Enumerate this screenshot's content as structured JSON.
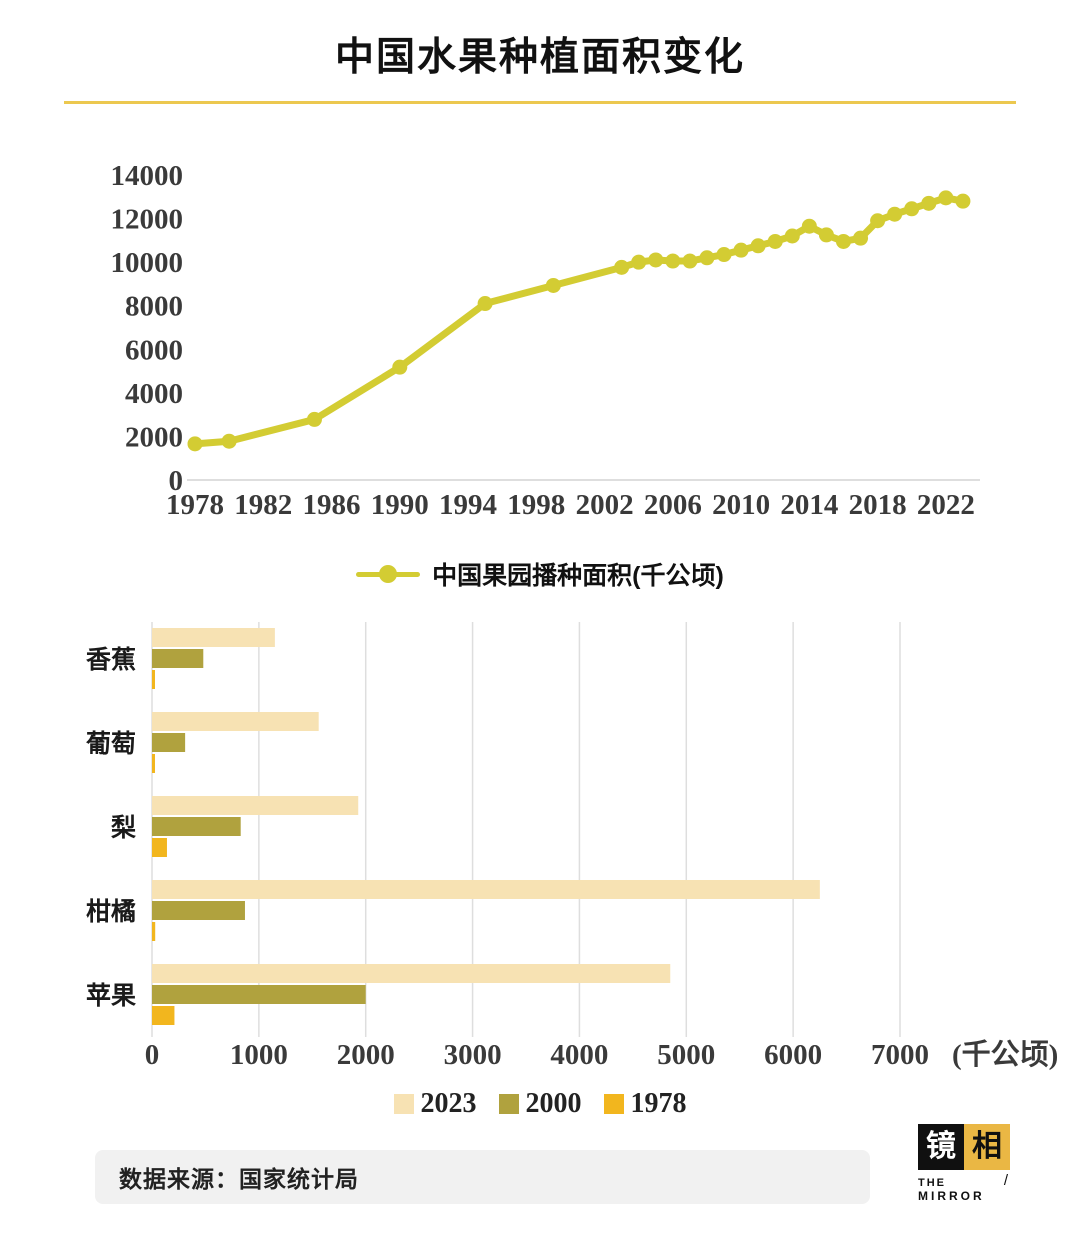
{
  "title": "中国水果种植面积变化",
  "colors": {
    "accent_divider": "#ecc84f",
    "line": "#d3cc33",
    "bar_2023": "#f7e2b3",
    "bar_2000": "#b0a23e",
    "bar_1978": "#f2b61e",
    "grid": "#dedede",
    "axis_text": "#3a3a3a",
    "logo_gold": "#eab744"
  },
  "footer": {
    "source": "数据来源：国家统计局"
  },
  "logo": {
    "jing": "镜",
    "xiang": "相",
    "the": "THE",
    "slash": "/",
    "mirror": "MIRROR"
  },
  "chart_data": [
    {
      "type": "line",
      "title": "中国果园播种面积(千公顷)",
      "x": [
        1978,
        1980,
        1985,
        1990,
        1995,
        1999,
        2003,
        2004,
        2005,
        2006,
        2007,
        2008,
        2009,
        2010,
        2011,
        2012,
        2013,
        2014,
        2015,
        2016,
        2017,
        2018,
        2019,
        2020,
        2021,
        2022,
        2023
      ],
      "values": [
        1660,
        1780,
        2780,
        5180,
        8100,
        8930,
        9760,
        10000,
        10100,
        10050,
        10050,
        10200,
        10350,
        10550,
        10750,
        10950,
        11200,
        11650,
        11250,
        10950,
        11100,
        11900,
        12200,
        12450,
        12700,
        12950,
        12800
      ],
      "xticks": [
        1978,
        1982,
        1986,
        1990,
        1994,
        1998,
        2002,
        2006,
        2010,
        2014,
        2018,
        2022
      ],
      "yticks": [
        0,
        2000,
        4000,
        6000,
        8000,
        10000,
        12000,
        14000
      ],
      "xlim": [
        1978,
        2024
      ],
      "ylim": [
        0,
        14000
      ],
      "line_color": "#d3cc33",
      "grid": "off",
      "legend_position": "bottom"
    },
    {
      "type": "bar",
      "orientation": "horizontal",
      "categories": [
        "香蕉",
        "葡萄",
        "梨",
        "柑橘",
        "苹果"
      ],
      "series": [
        {
          "name": "2023",
          "color": "#f7e2b3",
          "values": [
            1150,
            1560,
            1930,
            6250,
            4850
          ]
        },
        {
          "name": "2000",
          "color": "#b0a23e",
          "values": [
            480,
            310,
            830,
            870,
            2000
          ]
        },
        {
          "name": "1978",
          "color": "#f2b61e",
          "values": [
            10,
            20,
            140,
            30,
            210
          ]
        }
      ],
      "xticks": [
        0,
        1000,
        2000,
        3000,
        4000,
        5000,
        6000,
        7000
      ],
      "xlim": [
        0,
        7000
      ],
      "xlabel": "(千公顷)",
      "grid": "vertical",
      "legend_position": "bottom"
    }
  ]
}
